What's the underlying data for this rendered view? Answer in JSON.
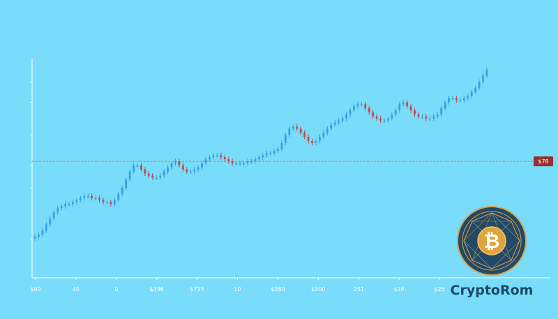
{
  "chart_data": {
    "type": "candlestick",
    "title": "",
    "xlabel": "",
    "ylabel": "",
    "x_tick_labels": [
      "$90",
      "40",
      "0",
      "$396",
      "$725",
      "10",
      "$280",
      "$300",
      "231",
      "$16",
      "$25"
    ],
    "ylim": [
      0,
      100
    ],
    "price_line": {
      "label": "$78",
      "value": 51
    },
    "series": [
      {
        "values": [
          14,
          15,
          17,
          20,
          23,
          26,
          28,
          29,
          30,
          30,
          31,
          32,
          33,
          34,
          34,
          33,
          33,
          32,
          31,
          31,
          30,
          32,
          35,
          38,
          42,
          46,
          49,
          49,
          47,
          45,
          44,
          43,
          43,
          44,
          46,
          48,
          50,
          51,
          49,
          47,
          46,
          46,
          47,
          48,
          50,
          52,
          53,
          54,
          54,
          53,
          52,
          51,
          50,
          50,
          50,
          50,
          51,
          51,
          52,
          53,
          54,
          55,
          55,
          56,
          57,
          60,
          64,
          67,
          68,
          67,
          65,
          63,
          61,
          60,
          61,
          63,
          65,
          67,
          69,
          70,
          71,
          72,
          74,
          76,
          78,
          79,
          79,
          77,
          75,
          73,
          72,
          71,
          71,
          72,
          74,
          76,
          79,
          80,
          78,
          76,
          74,
          73,
          73,
          72,
          72,
          73,
          74,
          77,
          80,
          82,
          82,
          81,
          81,
          82,
          83,
          85,
          87,
          90,
          93,
          96
        ]
      }
    ],
    "colors": {
      "up": "#3a9fe0",
      "down": "#c04a4a",
      "price_line": "#e07a4a",
      "price_tag": "#9a2f2f"
    }
  },
  "brand": {
    "name": "CryptoRom",
    "logo_glyph": "₿"
  }
}
